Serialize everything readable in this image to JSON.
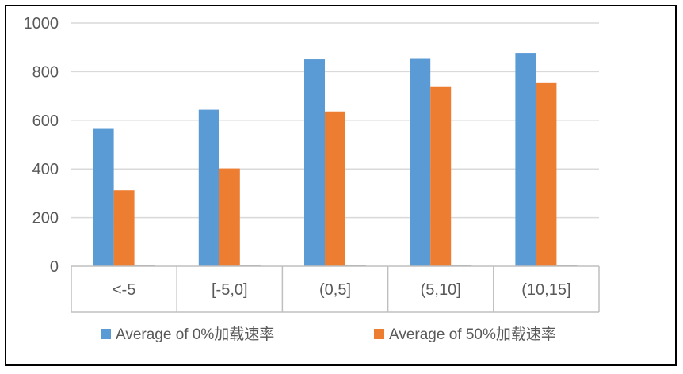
{
  "chart_data": {
    "type": "bar",
    "title": "",
    "xlabel": "",
    "ylabel": "",
    "categories": [
      "<-5",
      "[-5,0]",
      "(0,5]",
      "(5,10]",
      "(10,15]"
    ],
    "ylim": [
      0,
      1000
    ],
    "yticks": [
      0,
      200,
      400,
      600,
      800,
      1000
    ],
    "grid": true,
    "legend_position": "bottom",
    "series": [
      {
        "name": "Average of 0%加载速率",
        "color": "#5B9BD5",
        "values": [
          565,
          643,
          850,
          855,
          876
        ]
      },
      {
        "name": "Average of 50%加载速率",
        "color": "#ED7D31",
        "values": [
          312,
          402,
          636,
          737,
          753
        ]
      },
      {
        "name": "",
        "color": "#A5A5A5",
        "values": [
          5,
          5,
          5,
          5,
          5
        ]
      }
    ]
  }
}
